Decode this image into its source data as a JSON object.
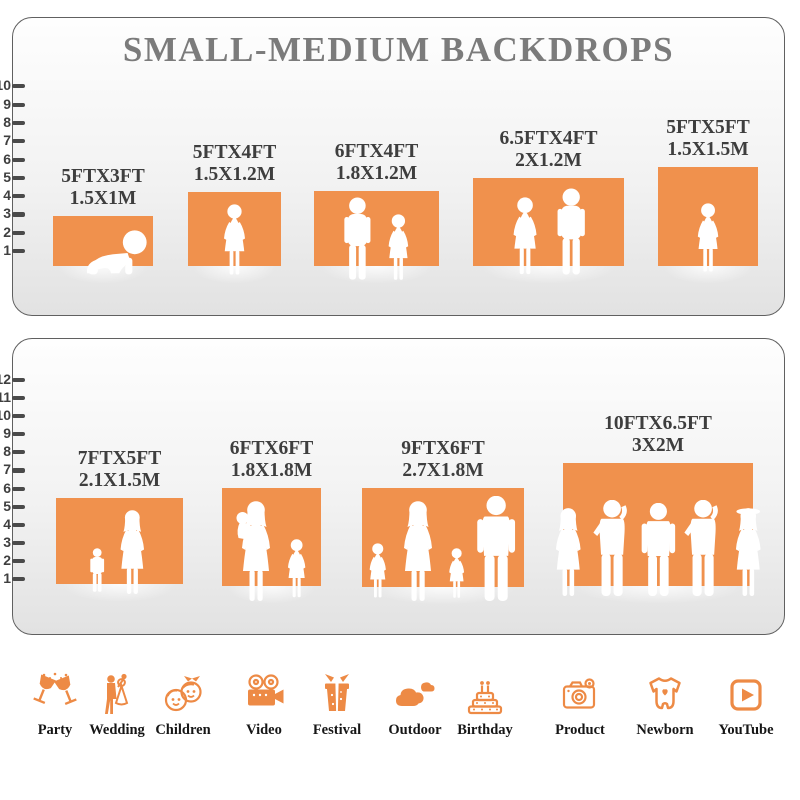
{
  "title": "SMALL-MEDIUM BACKDROPS",
  "colors": {
    "backdrop_orange": "#F0914D",
    "icon_orange": "#ED8A45",
    "label_text": "#3E3E3E",
    "title_gray": "#7B7B7B",
    "ruler_tick": "#4A4A4A",
    "panel_border": "#606060"
  },
  "panels": [
    {
      "name": "top-panel",
      "ruler_ticks": [
        "1",
        "2",
        "3",
        "4",
        "5",
        "6",
        "7",
        "8",
        "9",
        "10"
      ],
      "backdrops": [
        {
          "ft": "5FTX3FT",
          "m": "1.5X1M",
          "figures": [
            {
              "type": "baby",
              "h": 50
            }
          ]
        },
        {
          "ft": "5FTX4FT",
          "m": "1.5X1.2M",
          "figures": [
            {
              "type": "girl",
              "h": 75
            }
          ]
        },
        {
          "ft": "6FTX4FT",
          "m": "1.8X1.2M",
          "figures": [
            {
              "type": "boy",
              "h": 87
            },
            {
              "type": "girl",
              "h": 70
            }
          ]
        },
        {
          "ft": "6.5FTX4FT",
          "m": "2X1.2M",
          "figures": [
            {
              "type": "girl",
              "h": 82
            },
            {
              "type": "boy",
              "h": 91
            }
          ]
        },
        {
          "ft": "5FTX5FT",
          "m": "1.5X1.5M",
          "figures": [
            {
              "type": "girl",
              "h": 73
            }
          ]
        }
      ]
    },
    {
      "name": "bottom-panel",
      "ruler_ticks": [
        "1",
        "2",
        "3",
        "4",
        "5",
        "6",
        "7",
        "8",
        "9",
        "10",
        "11",
        "12"
      ],
      "backdrops": [
        {
          "ft": "7FTX5FT",
          "m": "2.1X1.5M",
          "figures": [
            {
              "type": "child",
              "h": 46
            },
            {
              "type": "woman",
              "h": 84
            }
          ]
        },
        {
          "ft": "6FTX6FT",
          "m": "1.8X1.8M",
          "figures": [
            {
              "type": "woman_baby",
              "h": 100
            },
            {
              "type": "girl",
              "h": 62
            }
          ]
        },
        {
          "ft": "9FTX6FT",
          "m": "2.7X1.8M",
          "figures": [
            {
              "type": "girl",
              "h": 58
            },
            {
              "type": "woman",
              "h": 100
            },
            {
              "type": "girl",
              "h": 53
            },
            {
              "type": "man",
              "h": 105
            }
          ]
        },
        {
          "ft": "10FTX6.5FT",
          "m": "3X2M",
          "figures": [
            {
              "type": "woman",
              "h": 88
            },
            {
              "type": "man_pose",
              "h": 96
            },
            {
              "type": "man",
              "h": 93
            },
            {
              "type": "man_pose",
              "h": 96
            },
            {
              "type": "woman_hat",
              "h": 88
            }
          ]
        }
      ]
    }
  ],
  "categories": [
    {
      "label": "Party",
      "icon": "party-glasses-icon"
    },
    {
      "label": "Wedding",
      "icon": "wedding-couple-icon"
    },
    {
      "label": "Children",
      "icon": "children-faces-icon"
    },
    {
      "label": "Video",
      "icon": "video-camera-icon"
    },
    {
      "label": "Festival",
      "icon": "gift-box-icon"
    },
    {
      "label": "Outdoor",
      "icon": "clouds-icon"
    },
    {
      "label": "Birthday",
      "icon": "birthday-cake-icon"
    },
    {
      "label": "Product",
      "icon": "photo-camera-icon"
    },
    {
      "label": "Newborn",
      "icon": "baby-onesie-icon"
    },
    {
      "label": "YouTube",
      "icon": "youtube-play-icon"
    }
  ]
}
